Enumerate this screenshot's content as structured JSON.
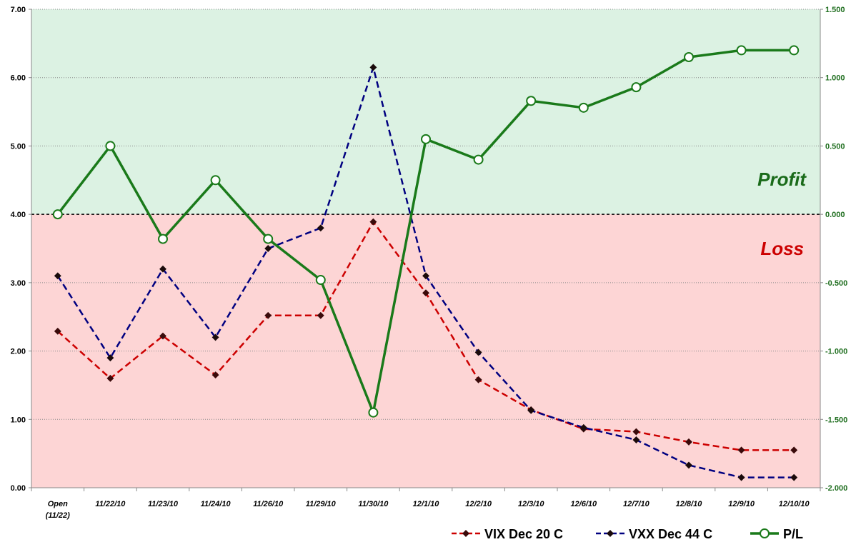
{
  "chart_data": {
    "type": "line",
    "categories": [
      "Open (11/22)",
      "11/22/10",
      "11/23/10",
      "11/24/10",
      "11/26/10",
      "11/29/10",
      "11/30/10",
      "12/1/10",
      "12/2/10",
      "12/3/10",
      "12/6/10",
      "12/7/10",
      "12/8/10",
      "12/9/10",
      "12/10/10"
    ],
    "category_lines": [
      [
        "Open",
        "(11/22)"
      ],
      [
        "11/22/10"
      ],
      [
        "11/23/10"
      ],
      [
        "11/24/10"
      ],
      [
        "11/26/10"
      ],
      [
        "11/29/10"
      ],
      [
        "11/30/10"
      ],
      [
        "12/1/10"
      ],
      [
        "12/2/10"
      ],
      [
        "12/3/10"
      ],
      [
        "12/6/10"
      ],
      [
        "12/7/10"
      ],
      [
        "12/8/10"
      ],
      [
        "12/9/10"
      ],
      [
        "12/10/10"
      ]
    ],
    "y_left": {
      "min": 0,
      "max": 7,
      "step": 1,
      "ticks": [
        "0.00",
        "1.00",
        "2.00",
        "3.00",
        "4.00",
        "5.00",
        "6.00",
        "7.00"
      ]
    },
    "y_right": {
      "min": -2,
      "max": 1.5,
      "step": 0.5,
      "ticks": [
        "-2.000",
        "-1.500",
        "-1.000",
        "-0.500",
        "0.000",
        "0.500",
        "1.000",
        "1.500"
      ]
    },
    "grid": true,
    "legend_position": "bottom-right",
    "zones": {
      "profit": {
        "label": "Profit",
        "color": "#dcf2e3",
        "text_color": "#1a6b1a"
      },
      "loss": {
        "label": "Loss",
        "color": "#fdd5d5",
        "text_color": "#cc0000"
      },
      "break_even_left": 4
    },
    "series": [
      {
        "name": "VIX Dec 20 C",
        "axis": "left",
        "style": "dashed",
        "color": "#cc0000",
        "marker_color": "#3a0a0a",
        "values": [
          2.29,
          1.6,
          2.22,
          1.65,
          2.52,
          2.52,
          3.89,
          2.85,
          1.58,
          1.14,
          0.86,
          0.82,
          0.67,
          0.55,
          0.55
        ]
      },
      {
        "name": "VXX Dec 44 C",
        "axis": "left",
        "style": "dashed",
        "color": "#000080",
        "marker_color": "#1a0a0a",
        "values": [
          3.1,
          1.9,
          3.2,
          2.2,
          3.5,
          3.8,
          6.15,
          3.1,
          1.98,
          1.13,
          0.88,
          0.7,
          0.33,
          0.15,
          0.15
        ]
      },
      {
        "name": "P/L",
        "axis": "right",
        "style": "solid",
        "color": "#1a7a1a",
        "marker_color": "#ffffff",
        "values": [
          0.0,
          0.5,
          -0.18,
          0.25,
          -0.18,
          -0.48,
          -1.45,
          0.55,
          0.4,
          0.83,
          0.78,
          0.93,
          1.15,
          1.2,
          1.2
        ]
      }
    ]
  }
}
